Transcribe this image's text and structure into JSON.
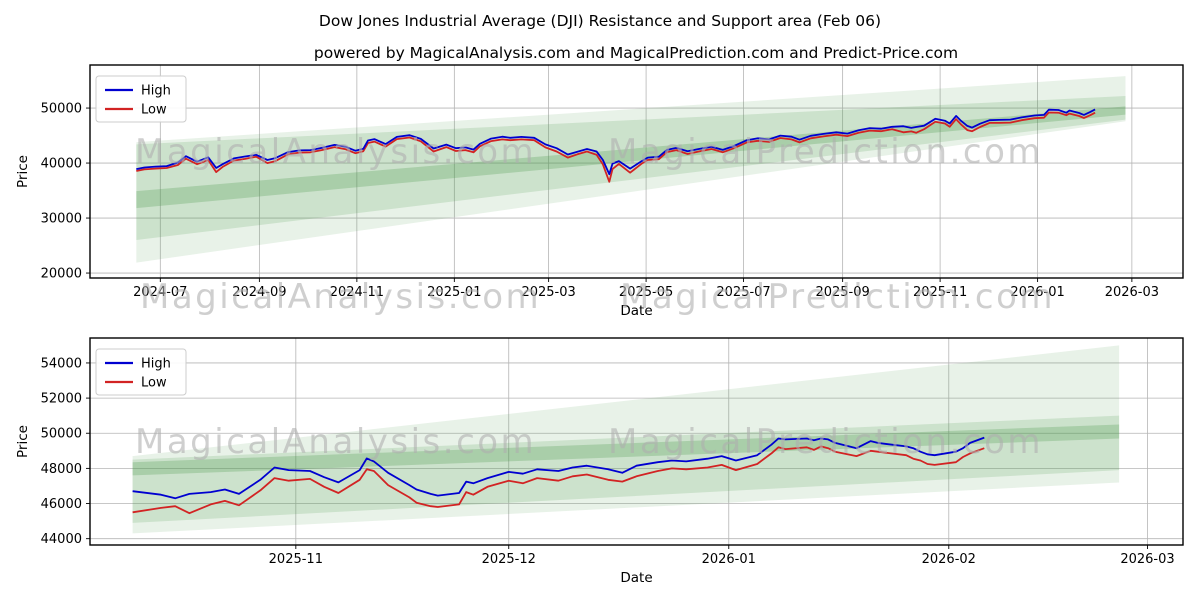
{
  "title": "Dow Jones Industrial Average (DJI) Resistance and Support area (Feb 06)",
  "subtitle": "powered by MagicalAnalysis.com and MagicalPrediction.com and Predict-Price.com",
  "watermarks": {
    "left_text": "MagicalAnalysis.com",
    "right_text": "MagicalPrediction.com",
    "color": "rgba(175,175,175,0.6)"
  },
  "colors": {
    "high_line": "#0000d0",
    "low_line": "#d22323",
    "band_green": "#4e9b4e",
    "grid": "#b5b5b5",
    "spine": "#000000",
    "text": "#000000",
    "legend_border": "#cccccc"
  },
  "chart_data": [
    {
      "type": "line",
      "name": "full-history-with-forecast-channel",
      "xlabel": "Date",
      "ylabel": "Price",
      "legend": [
        "High",
        "Low"
      ],
      "legend_position": "upper-left",
      "grid": true,
      "x_range": [
        "2024-05-18",
        "2026-04-02"
      ],
      "y_range": [
        19100,
        57830
      ],
      "x_ticks": [
        {
          "date": "2024-07-01",
          "label": "2024-07"
        },
        {
          "date": "2024-09-01",
          "label": "2024-09"
        },
        {
          "date": "2024-11-01",
          "label": "2024-11"
        },
        {
          "date": "2025-01-01",
          "label": "2025-01"
        },
        {
          "date": "2025-03-01",
          "label": "2025-03"
        },
        {
          "date": "2025-05-01",
          "label": "2025-05"
        },
        {
          "date": "2025-07-01",
          "label": "2025-07"
        },
        {
          "date": "2025-09-01",
          "label": "2025-09"
        },
        {
          "date": "2025-11-01",
          "label": "2025-11"
        },
        {
          "date": "2026-01-01",
          "label": "2026-01"
        },
        {
          "date": "2026-03-01",
          "label": "2026-03"
        }
      ],
      "y_ticks": [
        20000,
        30000,
        40000,
        50000
      ],
      "bands": [
        {
          "name": "outer-support-resistance",
          "x": [
            "2024-06-16",
            "2026-02-25"
          ],
          "upper": [
            43800,
            55800
          ],
          "lower": [
            21900,
            47600
          ],
          "opacity": 0.13
        },
        {
          "name": "inner-support-resistance",
          "x": [
            "2024-06-16",
            "2026-02-25"
          ],
          "upper": [
            43400,
            52200
          ],
          "lower": [
            26000,
            47900
          ],
          "opacity": 0.18
        },
        {
          "name": "core-trend-band",
          "x": [
            "2024-06-16",
            "2026-02-25"
          ],
          "upper": [
            34900,
            50300
          ],
          "lower": [
            31800,
            48800
          ],
          "opacity": 0.28
        }
      ],
      "points": [
        [
          "2024-06-16",
          38900,
          38550
        ],
        [
          "2024-06-21",
          39200,
          38850
        ],
        [
          "2024-06-28",
          39350,
          39000
        ],
        [
          "2024-07-05",
          39450,
          39100
        ],
        [
          "2024-07-12",
          40100,
          39650
        ],
        [
          "2024-07-17",
          41250,
          40800
        ],
        [
          "2024-07-24",
          40250,
          39800
        ],
        [
          "2024-07-31",
          41050,
          40550
        ],
        [
          "2024-08-05",
          39100,
          38350
        ],
        [
          "2024-08-09",
          39800,
          39300
        ],
        [
          "2024-08-16",
          40850,
          40450
        ],
        [
          "2024-08-23",
          41200,
          40750
        ],
        [
          "2024-08-30",
          41500,
          41150
        ],
        [
          "2024-09-06",
          40550,
          40000
        ],
        [
          "2024-09-11",
          40900,
          40350
        ],
        [
          "2024-09-19",
          42000,
          41600
        ],
        [
          "2024-09-26",
          42300,
          41900
        ],
        [
          "2024-10-03",
          42350,
          41950
        ],
        [
          "2024-10-10",
          42750,
          42350
        ],
        [
          "2024-10-18",
          43300,
          42900
        ],
        [
          "2024-10-25",
          42950,
          42500
        ],
        [
          "2024-10-31",
          42250,
          41800
        ],
        [
          "2024-11-05",
          42600,
          42150
        ],
        [
          "2024-11-08",
          44100,
          43650
        ],
        [
          "2024-11-12",
          44350,
          43900
        ],
        [
          "2024-11-19",
          43450,
          43000
        ],
        [
          "2024-11-26",
          44750,
          44350
        ],
        [
          "2024-12-04",
          45070,
          44650
        ],
        [
          "2024-12-11",
          44400,
          43950
        ],
        [
          "2024-12-19",
          42650,
          42100
        ],
        [
          "2024-12-27",
          43350,
          42900
        ],
        [
          "2025-01-02",
          42700,
          42200
        ],
        [
          "2025-01-08",
          42850,
          42350
        ],
        [
          "2025-01-13",
          42450,
          41950
        ],
        [
          "2025-01-17",
          43500,
          43050
        ],
        [
          "2025-01-24",
          44450,
          44000
        ],
        [
          "2025-01-31",
          44800,
          44300
        ],
        [
          "2025-02-05",
          44600,
          44150
        ],
        [
          "2025-02-12",
          44750,
          44300
        ],
        [
          "2025-02-20",
          44600,
          44150
        ],
        [
          "2025-02-27",
          43400,
          42850
        ],
        [
          "2025-03-06",
          42700,
          42100
        ],
        [
          "2025-03-13",
          41550,
          41000
        ],
        [
          "2025-03-19",
          42050,
          41600
        ],
        [
          "2025-03-25",
          42550,
          42100
        ],
        [
          "2025-03-31",
          42100,
          41500
        ],
        [
          "2025-04-04",
          40550,
          39750
        ],
        [
          "2025-04-08",
          37950,
          36600
        ],
        [
          "2025-04-10",
          39900,
          38900
        ],
        [
          "2025-04-14",
          40350,
          39850
        ],
        [
          "2025-04-21",
          39000,
          38250
        ],
        [
          "2025-04-28",
          40300,
          39850
        ],
        [
          "2025-05-02",
          41000,
          40550
        ],
        [
          "2025-05-09",
          41150,
          40700
        ],
        [
          "2025-05-14",
          42400,
          42000
        ],
        [
          "2025-05-20",
          42750,
          42350
        ],
        [
          "2025-05-27",
          42150,
          41650
        ],
        [
          "2025-06-03",
          42550,
          42100
        ],
        [
          "2025-06-11",
          42950,
          42550
        ],
        [
          "2025-06-18",
          42400,
          41950
        ],
        [
          "2025-06-25",
          43100,
          42700
        ],
        [
          "2025-07-03",
          44150,
          43750
        ],
        [
          "2025-07-10",
          44500,
          44050
        ],
        [
          "2025-07-17",
          44300,
          43850
        ],
        [
          "2025-07-24",
          45000,
          44550
        ],
        [
          "2025-07-31",
          44800,
          44300
        ],
        [
          "2025-08-05",
          44250,
          43750
        ],
        [
          "2025-08-12",
          44950,
          44500
        ],
        [
          "2025-08-20",
          45300,
          44850
        ],
        [
          "2025-08-28",
          45600,
          45150
        ],
        [
          "2025-09-04",
          45350,
          44900
        ],
        [
          "2025-09-11",
          45950,
          45500
        ],
        [
          "2025-09-18",
          46350,
          45900
        ],
        [
          "2025-09-25",
          46250,
          45800
        ],
        [
          "2025-10-02",
          46600,
          46150
        ],
        [
          "2025-10-09",
          46700,
          45600
        ],
        [
          "2025-10-14",
          46400,
          45750
        ],
        [
          "2025-10-17",
          46550,
          45500
        ],
        [
          "2025-10-22",
          46800,
          46150
        ],
        [
          "2025-10-29",
          48050,
          47500
        ],
        [
          "2025-11-04",
          47700,
          47200
        ],
        [
          "2025-11-07",
          47200,
          46600
        ],
        [
          "2025-11-11",
          48570,
          48000
        ],
        [
          "2025-11-14",
          47700,
          47050
        ],
        [
          "2025-11-18",
          46750,
          46000
        ],
        [
          "2025-11-21",
          46450,
          45800
        ],
        [
          "2025-11-26",
          47150,
          46550
        ],
        [
          "2025-12-02",
          47800,
          47300
        ],
        [
          "2025-12-08",
          47850,
          47300
        ],
        [
          "2025-12-15",
          47900,
          47350
        ],
        [
          "2025-12-22",
          48300,
          47800
        ],
        [
          "2025-12-30",
          48650,
          48150
        ],
        [
          "2026-01-05",
          48750,
          48250
        ],
        [
          "2026-01-08",
          49700,
          49200
        ],
        [
          "2026-01-14",
          49650,
          49150
        ],
        [
          "2026-01-19",
          49150,
          48700
        ],
        [
          "2026-01-21",
          49550,
          49000
        ],
        [
          "2026-01-27",
          49100,
          48550
        ],
        [
          "2026-01-30",
          48750,
          48200
        ],
        [
          "2026-02-03",
          49300,
          48700
        ],
        [
          "2026-02-06",
          49750,
          49150
        ]
      ]
    },
    {
      "type": "line",
      "name": "recent-detail-with-forecast-channel",
      "xlabel": "Date",
      "ylabel": "Price",
      "legend": [
        "High",
        "Low"
      ],
      "legend_position": "upper-left",
      "grid": true,
      "x_range": [
        "2025-10-03",
        "2026-03-06"
      ],
      "y_range": [
        43640,
        55420
      ],
      "x_ticks": [
        {
          "date": "2025-11-01",
          "label": "2025-11"
        },
        {
          "date": "2025-12-01",
          "label": "2025-12"
        },
        {
          "date": "2026-01-01",
          "label": "2026-01"
        },
        {
          "date": "2026-02-01",
          "label": "2026-02"
        },
        {
          "date": "2026-03-01",
          "label": "2026-03"
        }
      ],
      "y_ticks": [
        44000,
        46000,
        48000,
        50000,
        52000,
        54000
      ],
      "bands": [
        {
          "name": "outer-support-resistance",
          "x": [
            "2025-10-09",
            "2026-02-25"
          ],
          "upper": [
            48700,
            55000
          ],
          "lower": [
            44300,
            47200
          ],
          "opacity": 0.13
        },
        {
          "name": "inner-support-resistance",
          "x": [
            "2025-10-09",
            "2026-02-25"
          ],
          "upper": [
            48500,
            51000
          ],
          "lower": [
            44900,
            47900
          ],
          "opacity": 0.18
        },
        {
          "name": "core-trend-band",
          "x": [
            "2025-10-09",
            "2026-02-25"
          ],
          "upper": [
            48350,
            50500
          ],
          "lower": [
            47600,
            49700
          ],
          "opacity": 0.28
        }
      ],
      "points": [
        [
          "2025-10-09",
          46700,
          45500
        ],
        [
          "2025-10-13",
          46500,
          45750
        ],
        [
          "2025-10-15",
          46300,
          45850
        ],
        [
          "2025-10-17",
          46550,
          45450
        ],
        [
          "2025-10-20",
          46650,
          45950
        ],
        [
          "2025-10-22",
          46800,
          46150
        ],
        [
          "2025-10-24",
          46550,
          45900
        ],
        [
          "2025-10-27",
          47350,
          46750
        ],
        [
          "2025-10-29",
          48050,
          47450
        ],
        [
          "2025-10-31",
          47900,
          47300
        ],
        [
          "2025-11-03",
          47850,
          47400
        ],
        [
          "2025-11-05",
          47500,
          46950
        ],
        [
          "2025-11-07",
          47200,
          46600
        ],
        [
          "2025-11-10",
          47900,
          47350
        ],
        [
          "2025-11-11",
          48570,
          47950
        ],
        [
          "2025-11-12",
          48400,
          47850
        ],
        [
          "2025-11-14",
          47750,
          47050
        ],
        [
          "2025-11-17",
          47050,
          46350
        ],
        [
          "2025-11-18",
          46800,
          46050
        ],
        [
          "2025-11-20",
          46550,
          45850
        ],
        [
          "2025-11-21",
          46450,
          45800
        ],
        [
          "2025-11-24",
          46600,
          45950
        ],
        [
          "2025-11-25",
          47250,
          46650
        ],
        [
          "2025-11-26",
          47150,
          46500
        ],
        [
          "2025-11-28",
          47450,
          46950
        ],
        [
          "2025-12-01",
          47800,
          47300
        ],
        [
          "2025-12-03",
          47700,
          47150
        ],
        [
          "2025-12-05",
          47950,
          47450
        ],
        [
          "2025-12-08",
          47850,
          47300
        ],
        [
          "2025-12-10",
          48050,
          47550
        ],
        [
          "2025-12-12",
          48150,
          47650
        ],
        [
          "2025-12-15",
          47950,
          47350
        ],
        [
          "2025-12-17",
          47750,
          47250
        ],
        [
          "2025-12-19",
          48150,
          47550
        ],
        [
          "2025-12-22",
          48350,
          47850
        ],
        [
          "2025-12-24",
          48450,
          48000
        ],
        [
          "2025-12-26",
          48400,
          47950
        ],
        [
          "2025-12-29",
          48550,
          48050
        ],
        [
          "2025-12-31",
          48700,
          48200
        ],
        [
          "2026-01-02",
          48450,
          47900
        ],
        [
          "2026-01-05",
          48750,
          48250
        ],
        [
          "2026-01-07",
          49350,
          48850
        ],
        [
          "2026-01-08",
          49700,
          49200
        ],
        [
          "2026-01-09",
          49650,
          49100
        ],
        [
          "2026-01-12",
          49700,
          49200
        ],
        [
          "2026-01-13",
          49600,
          49050
        ],
        [
          "2026-01-14",
          49700,
          49250
        ],
        [
          "2026-01-15",
          49650,
          49150
        ],
        [
          "2026-01-16",
          49450,
          48950
        ],
        [
          "2026-01-19",
          49150,
          48700
        ],
        [
          "2026-01-21",
          49550,
          49000
        ],
        [
          "2026-01-22",
          49450,
          48950
        ],
        [
          "2026-01-23",
          49400,
          48900
        ],
        [
          "2026-01-26",
          49250,
          48750
        ],
        [
          "2026-01-27",
          49150,
          48550
        ],
        [
          "2026-01-28",
          48950,
          48450
        ],
        [
          "2026-01-29",
          48800,
          48250
        ],
        [
          "2026-01-30",
          48750,
          48200
        ],
        [
          "2026-02-02",
          48950,
          48350
        ],
        [
          "2026-02-03",
          49150,
          48650
        ],
        [
          "2026-02-04",
          49450,
          48850
        ],
        [
          "2026-02-06",
          49750,
          49150
        ]
      ]
    }
  ]
}
